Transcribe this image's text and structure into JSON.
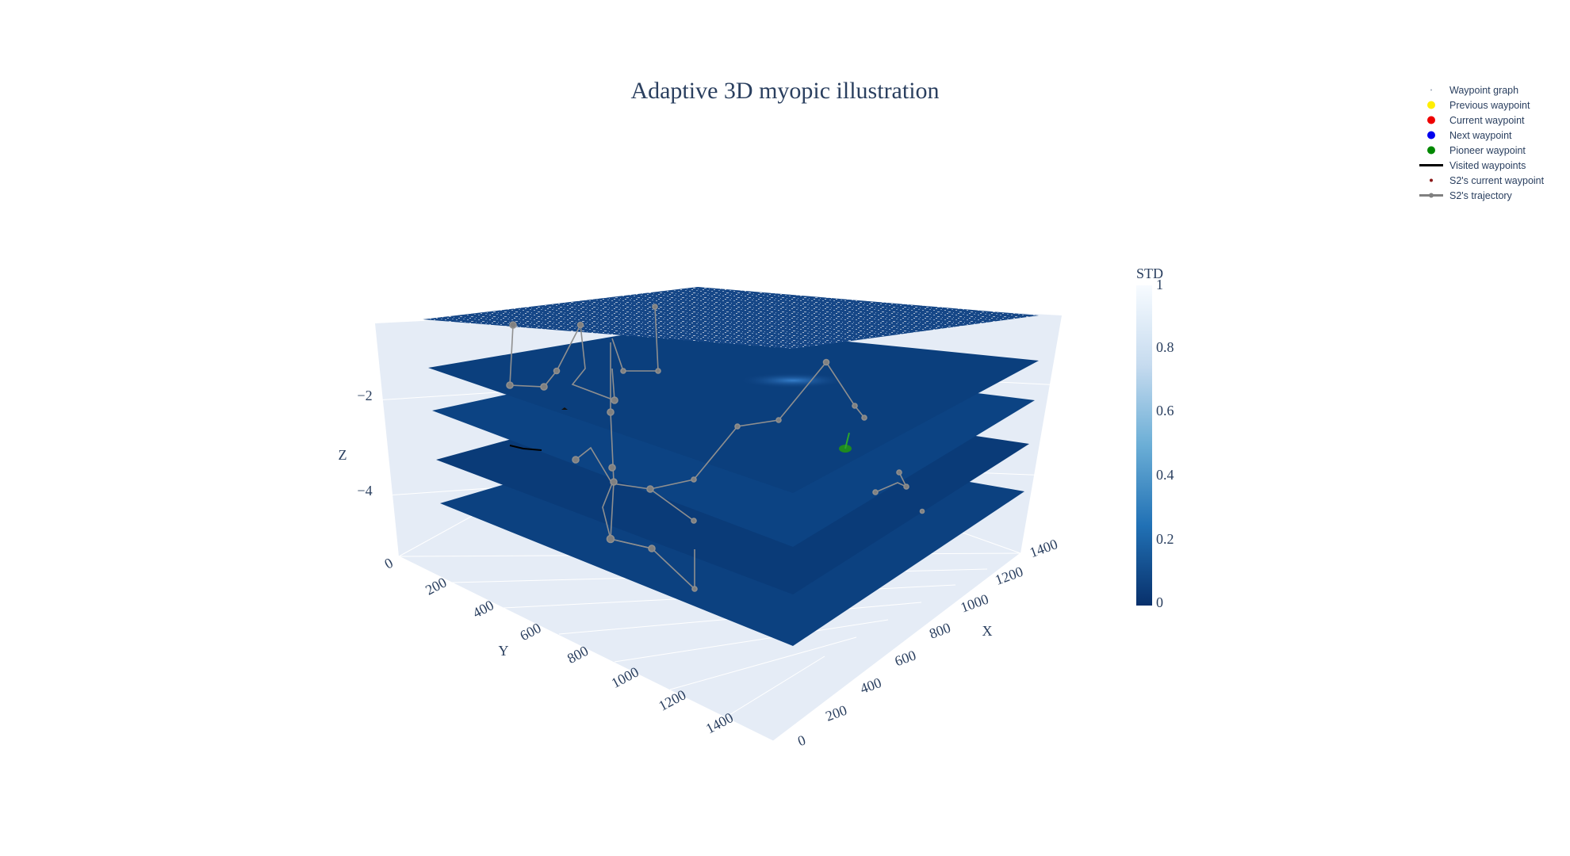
{
  "title": "Adaptive 3D myopic illustration",
  "legend": [
    {
      "label": "Waypoint graph",
      "marker": "tiny-dot",
      "color": "#9aa5b8"
    },
    {
      "label": "Previous waypoint",
      "marker": "dot",
      "color": "#ffee00"
    },
    {
      "label": "Current waypoint",
      "marker": "dot",
      "color": "#ee0000"
    },
    {
      "label": "Next waypoint",
      "marker": "dot",
      "color": "#0000ee"
    },
    {
      "label": "Pioneer waypoint",
      "marker": "dot",
      "color": "#008800"
    },
    {
      "label": "Visited waypoints",
      "marker": "line",
      "color": "#000000"
    },
    {
      "label": "S2's current waypoint",
      "marker": "small-dot",
      "color": "#8b1a1a"
    },
    {
      "label": "S2's trajectory",
      "marker": "line-dot",
      "color": "#808080"
    }
  ],
  "colorbar": {
    "title": "STD",
    "ticks": [
      "0",
      "0.2",
      "0.4",
      "0.6",
      "0.8",
      "1"
    ],
    "colors": [
      "#08306b",
      "#2171b5",
      "#6baed6",
      "#c6dbef",
      "#f7fbff"
    ]
  },
  "chart_data": {
    "type": "surface-3d",
    "title": "Adaptive 3D myopic illustration",
    "xlabel": "X",
    "ylabel": "Y",
    "zlabel": "Z",
    "xlim": [
      0,
      1500
    ],
    "ylim": [
      0,
      1500
    ],
    "zlim": [
      -5.5,
      -0.5
    ],
    "x_ticks": [
      0,
      200,
      400,
      600,
      800,
      1000,
      1200,
      1400
    ],
    "y_ticks": [
      0,
      200,
      400,
      600,
      800,
      1000,
      1200,
      1400
    ],
    "z_ticks": [
      -2,
      -4
    ],
    "layers": [
      {
        "z": -1,
        "std_level": "noisy"
      },
      {
        "z": -2,
        "std_level": "low"
      },
      {
        "z": -3,
        "std_level": "low"
      },
      {
        "z": -4,
        "std_level": "low"
      },
      {
        "z": -5,
        "std_level": "low"
      }
    ],
    "colorscale": "Blues",
    "color_range": [
      0,
      1
    ],
    "grid": true,
    "legend_position": "top-right"
  }
}
